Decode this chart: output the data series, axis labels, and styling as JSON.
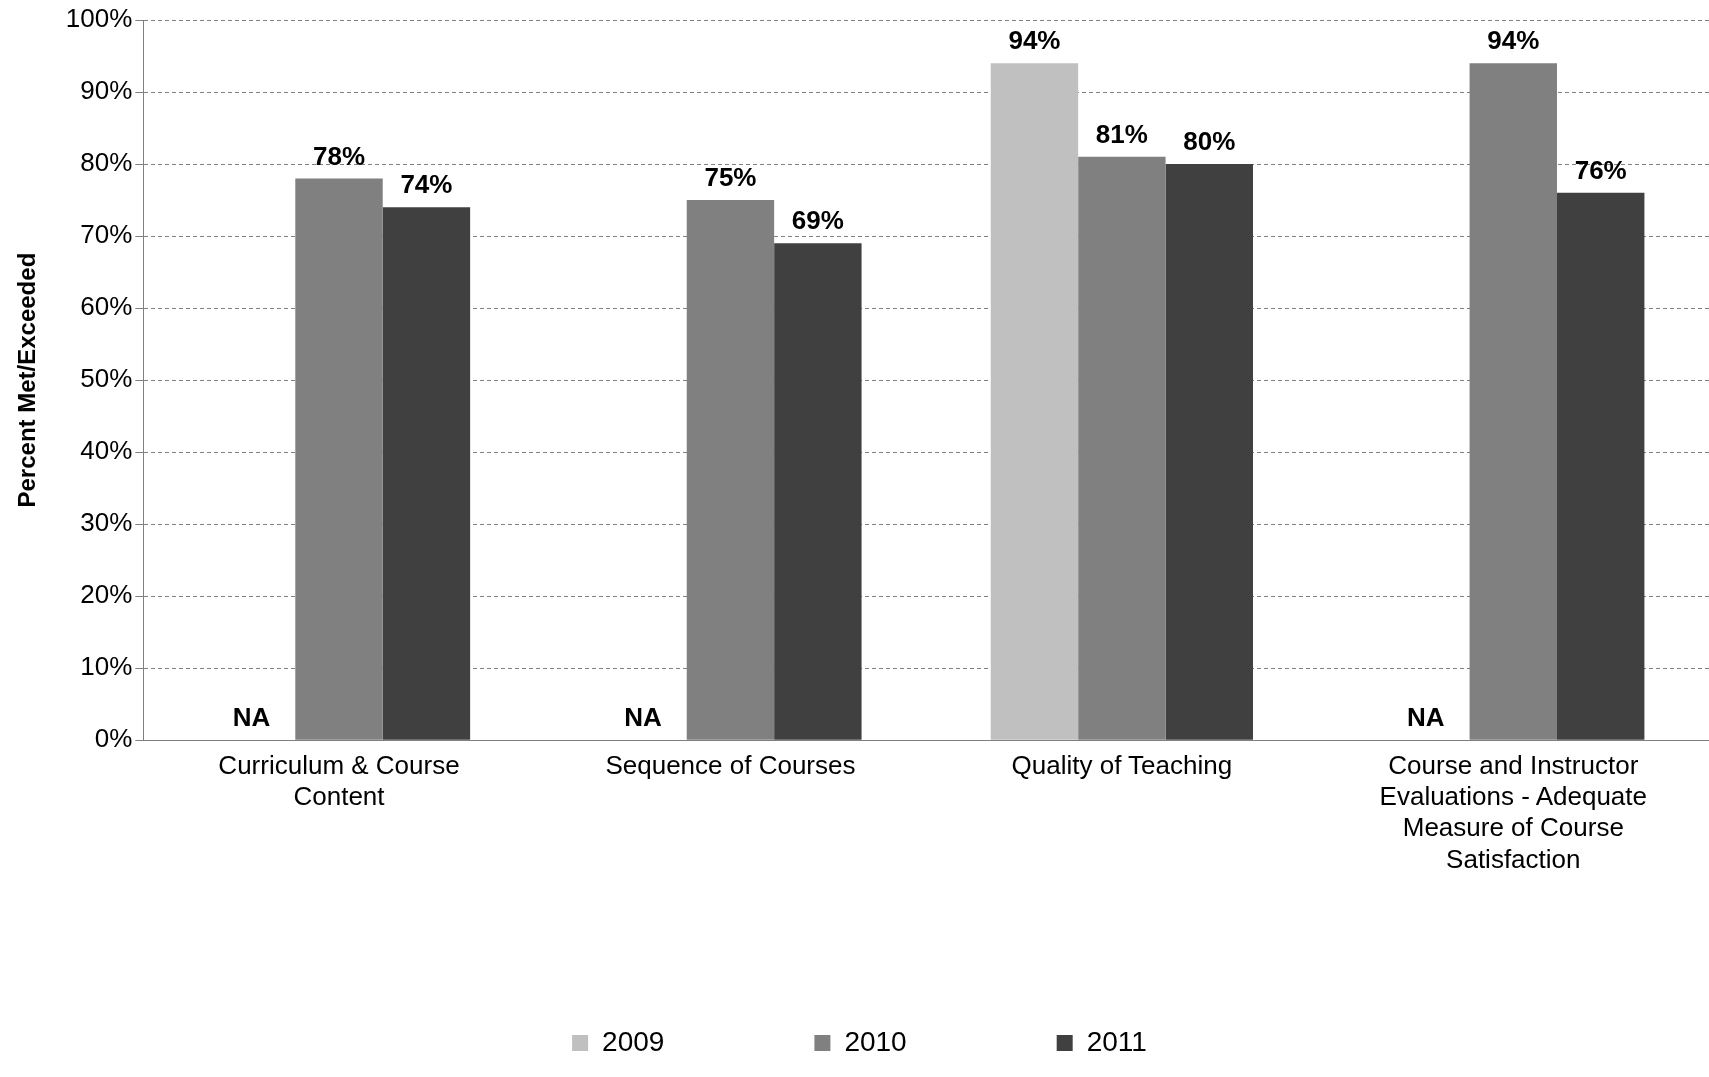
{
  "chart_data": {
    "type": "bar",
    "ylabel": "Percent Met/Exceeded",
    "categories": [
      "Curriculum & Course Content",
      "Sequence of Courses",
      "Quality of Teaching",
      "Course and Instructor Evaluations - Adequate Measure of Course Satisfaction"
    ],
    "series": [
      {
        "name": "2009",
        "color": "#c0c0c0",
        "values": [
          null,
          null,
          94,
          null
        ],
        "value_labels": [
          "NA",
          "NA",
          "94%",
          "NA"
        ]
      },
      {
        "name": "2010",
        "color": "#808080",
        "values": [
          78,
          75,
          81,
          94
        ],
        "value_labels": [
          "78%",
          "75%",
          "81%",
          "94%"
        ]
      },
      {
        "name": "2011",
        "color": "#404040",
        "values": [
          74,
          69,
          80,
          76
        ],
        "value_labels": [
          "74%",
          "69%",
          "80%",
          "76%"
        ]
      }
    ],
    "ylim": [
      0,
      100
    ],
    "yticks": [
      {
        "value": 0,
        "label": "0%"
      },
      {
        "value": 10,
        "label": "10%"
      },
      {
        "value": 20,
        "label": "20%"
      },
      {
        "value": 30,
        "label": "30%"
      },
      {
        "value": 40,
        "label": "40%"
      },
      {
        "value": 50,
        "label": "50%"
      },
      {
        "value": 60,
        "label": "60%"
      },
      {
        "value": 70,
        "label": "70%"
      },
      {
        "value": 80,
        "label": "80%"
      },
      {
        "value": 90,
        "label": "90%"
      },
      {
        "value": 100,
        "label": "100%"
      }
    ],
    "grid": "y",
    "legend": "bottom"
  }
}
